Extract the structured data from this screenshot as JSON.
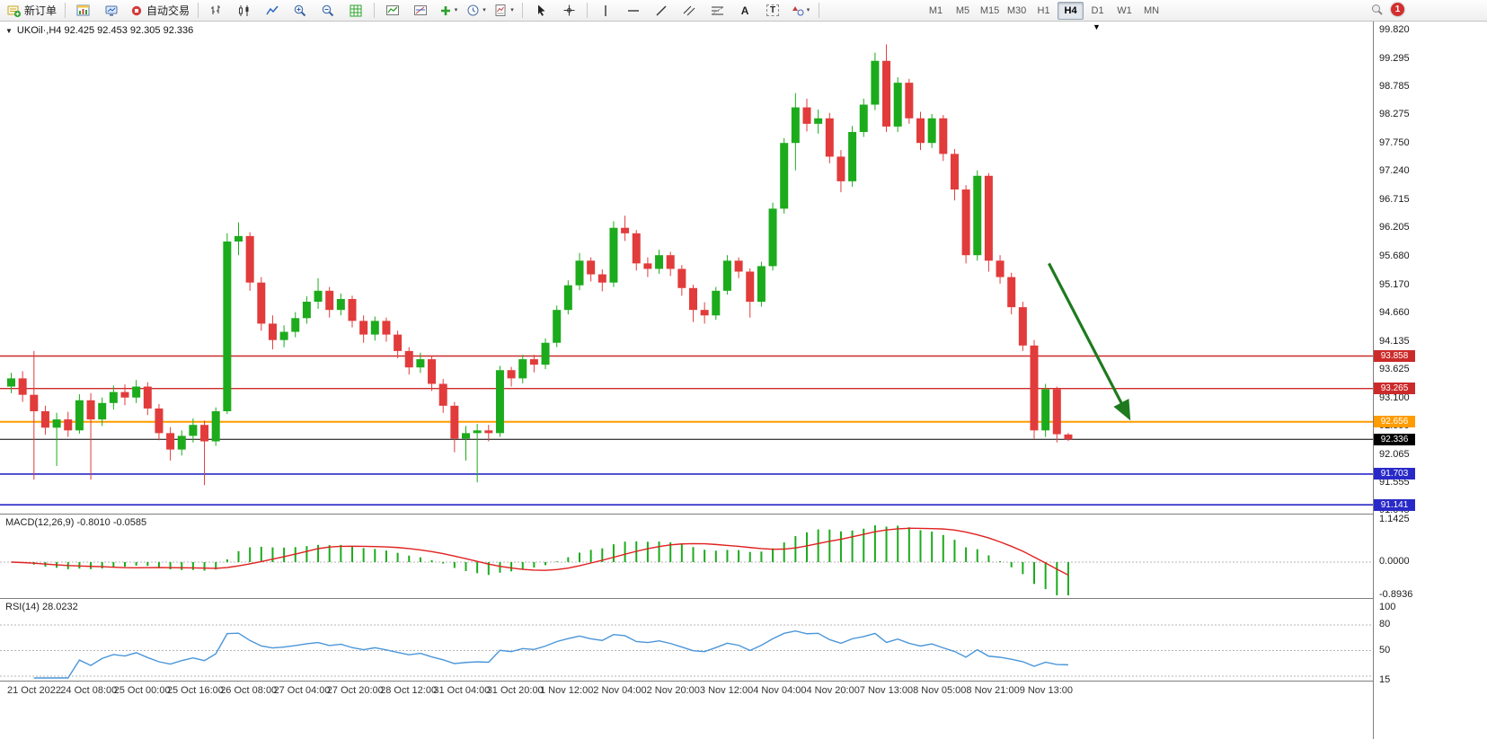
{
  "toolbar": {
    "new_order_label": "新订单",
    "auto_trading_label": "自动交易",
    "timeframes": [
      "M1",
      "M5",
      "M15",
      "M30",
      "H1",
      "H4",
      "D1",
      "W1",
      "MN"
    ],
    "active_timeframe": "H4",
    "notification_badge": "1",
    "icons": [
      "new-order",
      "new-chart",
      "profiles",
      "auto-trading",
      "bar-chart-type",
      "candlestick-type",
      "line-chart-type",
      "zoom-in",
      "zoom-out",
      "grid",
      "indicators-window",
      "objects-list",
      "add-indicator",
      "periods",
      "templates",
      "cursor",
      "crosshair",
      "vertical-line",
      "horizontal-line",
      "trendline",
      "equidistant-channel",
      "fibonacci",
      "text",
      "text-label",
      "arrows-dropdown",
      "search",
      "notifications"
    ]
  },
  "chart": {
    "symbol_label": "UKOil·,H4 92.425 92.453 92.305 92.336",
    "price_axis_labels": [
      "99.820",
      "99.295",
      "98.785",
      "98.275",
      "97.750",
      "97.240",
      "96.715",
      "96.205",
      "95.680",
      "95.170",
      "94.660",
      "94.135",
      "93.625",
      "93.100",
      "92.590",
      "92.065",
      "91.555",
      "91.045"
    ],
    "time_axis_labels": [
      "21 Oct 2022",
      "24 Oct 08:00",
      "25 Oct 00:00",
      "25 Oct 16:00",
      "26 Oct 08:00",
      "27 Oct 04:00",
      "27 Oct 20:00",
      "28 Oct 12:00",
      "31 Oct 04:00",
      "31 Oct 20:00",
      "1 Nov 12:00",
      "2 Nov 04:00",
      "2 Nov 20:00",
      "3 Nov 12:00",
      "4 Nov 04:00",
      "4 Nov 20:00",
      "7 Nov 13:00",
      "8 Nov 05:00",
      "8 Nov 21:00",
      "9 Nov 13:00"
    ],
    "horizontal_lines": [
      {
        "price": 93.858,
        "label": "93.858",
        "color": "#cc2a2a",
        "width": 1.4
      },
      {
        "price": 93.265,
        "label": "93.265",
        "color": "#cc2a2a",
        "width": 1.4
      },
      {
        "price": 92.656,
        "label": "92.656",
        "color": "#ff9c00",
        "width": 2
      },
      {
        "price": 92.336,
        "label": "92.336",
        "color": "#000000",
        "width": 1
      },
      {
        "price": 91.703,
        "label": "91.703",
        "color": "#2929c8",
        "width": 1.6
      },
      {
        "price": 91.141,
        "label": "91.141",
        "color": "#2929c8",
        "width": 1.6
      }
    ],
    "arrow": {
      "from_index": 91.3,
      "from_price": 95.55,
      "to_index": 98.3,
      "to_price": 92.75,
      "color": "#1e7a1e"
    },
    "colors": {
      "bull": "#1cab1c",
      "bear": "#e23b3b"
    }
  },
  "chart_data": {
    "type": "candlestick",
    "symbol": "UKOil",
    "timeframe": "H4",
    "ohlc": [
      [
        93.3,
        93.55,
        93.18,
        93.45
      ],
      [
        93.45,
        93.58,
        93.02,
        93.15
      ],
      [
        93.15,
        93.95,
        91.6,
        92.85
      ],
      [
        92.85,
        92.95,
        92.42,
        92.55
      ],
      [
        92.55,
        92.82,
        91.85,
        92.7
      ],
      [
        92.7,
        92.84,
        92.38,
        92.5
      ],
      [
        92.5,
        93.16,
        92.44,
        93.05
      ],
      [
        93.05,
        93.18,
        91.6,
        92.7
      ],
      [
        92.7,
        93.1,
        92.58,
        93.0
      ],
      [
        93.0,
        93.32,
        92.88,
        93.2
      ],
      [
        93.2,
        93.34,
        92.96,
        93.1
      ],
      [
        93.1,
        93.42,
        93.0,
        93.3
      ],
      [
        93.3,
        93.38,
        92.78,
        92.9
      ],
      [
        92.9,
        92.98,
        92.32,
        92.45
      ],
      [
        92.45,
        92.56,
        91.95,
        92.15
      ],
      [
        92.15,
        92.5,
        92.04,
        92.4
      ],
      [
        92.4,
        92.72,
        92.28,
        92.6
      ],
      [
        92.6,
        92.68,
        91.5,
        92.3
      ],
      [
        92.3,
        92.92,
        92.22,
        92.85
      ],
      [
        92.85,
        96.1,
        92.8,
        95.95
      ],
      [
        95.95,
        96.3,
        95.7,
        96.05
      ],
      [
        96.05,
        96.12,
        95.05,
        95.2
      ],
      [
        95.2,
        95.3,
        94.32,
        94.45
      ],
      [
        94.45,
        94.6,
        93.98,
        94.15
      ],
      [
        94.15,
        94.42,
        94.02,
        94.3
      ],
      [
        94.3,
        94.66,
        94.2,
        94.55
      ],
      [
        94.55,
        94.95,
        94.45,
        94.85
      ],
      [
        94.85,
        95.28,
        94.72,
        95.05
      ],
      [
        95.05,
        95.12,
        94.56,
        94.7
      ],
      [
        94.7,
        95.0,
        94.6,
        94.9
      ],
      [
        94.9,
        94.96,
        94.38,
        94.5
      ],
      [
        94.5,
        94.6,
        94.1,
        94.25
      ],
      [
        94.25,
        94.58,
        94.14,
        94.5
      ],
      [
        94.5,
        94.56,
        94.12,
        94.25
      ],
      [
        94.25,
        94.32,
        93.82,
        93.95
      ],
      [
        93.95,
        94.02,
        93.52,
        93.65
      ],
      [
        93.65,
        93.92,
        93.55,
        93.8
      ],
      [
        93.8,
        93.86,
        93.22,
        93.35
      ],
      [
        93.35,
        93.44,
        92.82,
        92.95
      ],
      [
        92.95,
        93.02,
        92.1,
        92.35
      ],
      [
        92.35,
        92.58,
        91.95,
        92.45
      ],
      [
        92.45,
        92.62,
        91.55,
        92.5
      ],
      [
        92.5,
        92.6,
        92.3,
        92.45
      ],
      [
        92.45,
        93.68,
        92.38,
        93.6
      ],
      [
        93.6,
        93.66,
        93.3,
        93.45
      ],
      [
        93.45,
        93.88,
        93.36,
        93.8
      ],
      [
        93.8,
        93.88,
        93.56,
        93.7
      ],
      [
        93.7,
        94.18,
        93.62,
        94.1
      ],
      [
        94.1,
        94.78,
        94.02,
        94.7
      ],
      [
        94.7,
        95.24,
        94.62,
        95.15
      ],
      [
        95.15,
        95.74,
        95.06,
        95.6
      ],
      [
        95.6,
        95.66,
        95.22,
        95.35
      ],
      [
        95.35,
        95.44,
        95.04,
        95.2
      ],
      [
        95.2,
        96.32,
        95.12,
        96.2
      ],
      [
        96.2,
        96.42,
        95.96,
        96.1
      ],
      [
        96.1,
        96.16,
        95.42,
        95.55
      ],
      [
        95.55,
        95.66,
        95.3,
        95.45
      ],
      [
        95.45,
        95.8,
        95.36,
        95.7
      ],
      [
        95.7,
        95.76,
        95.32,
        95.45
      ],
      [
        95.45,
        95.52,
        94.96,
        95.1
      ],
      [
        95.1,
        95.16,
        94.48,
        94.7
      ],
      [
        94.7,
        94.84,
        94.45,
        94.6
      ],
      [
        94.6,
        95.12,
        94.52,
        95.05
      ],
      [
        95.05,
        95.7,
        94.98,
        95.6
      ],
      [
        95.6,
        95.66,
        95.28,
        95.4
      ],
      [
        95.4,
        95.46,
        94.56,
        94.85
      ],
      [
        94.85,
        95.58,
        94.76,
        95.5
      ],
      [
        95.5,
        96.66,
        95.42,
        96.55
      ],
      [
        96.55,
        97.84,
        96.46,
        97.75
      ],
      [
        97.75,
        98.66,
        97.25,
        98.4
      ],
      [
        98.4,
        98.56,
        97.96,
        98.1
      ],
      [
        98.1,
        98.36,
        97.92,
        98.2
      ],
      [
        98.2,
        98.3,
        97.38,
        97.5
      ],
      [
        97.5,
        97.62,
        96.85,
        97.05
      ],
      [
        97.05,
        98.06,
        96.95,
        97.95
      ],
      [
        97.95,
        98.56,
        97.86,
        98.45
      ],
      [
        98.45,
        99.4,
        98.35,
        99.25
      ],
      [
        99.25,
        99.55,
        97.95,
        98.05
      ],
      [
        98.05,
        98.95,
        97.95,
        98.85
      ],
      [
        98.85,
        98.92,
        98.1,
        98.2
      ],
      [
        98.2,
        98.32,
        97.62,
        97.75
      ],
      [
        97.75,
        98.28,
        97.66,
        98.2
      ],
      [
        98.2,
        98.26,
        97.42,
        97.55
      ],
      [
        97.55,
        97.64,
        96.7,
        96.9
      ],
      [
        96.9,
        96.98,
        95.55,
        95.7
      ],
      [
        95.7,
        97.25,
        95.6,
        97.15
      ],
      [
        97.15,
        97.2,
        95.4,
        95.6
      ],
      [
        95.6,
        95.7,
        95.18,
        95.3
      ],
      [
        95.3,
        95.38,
        94.62,
        94.75
      ],
      [
        94.75,
        94.85,
        93.95,
        94.05
      ],
      [
        94.05,
        94.15,
        92.35,
        92.5
      ],
      [
        92.5,
        93.35,
        92.38,
        93.25
      ],
      [
        93.25,
        93.3,
        92.28,
        92.43
      ],
      [
        92.425,
        92.453,
        92.305,
        92.336
      ]
    ]
  },
  "macd": {
    "label": "MACD(12,26,9) -0.8010 -0.0585",
    "main_value": "-0.8010",
    "signal_value": "-0.0585",
    "axis_labels": [
      "1.1425",
      "0.0000",
      "-0.8936"
    ],
    "fast": 12,
    "slow": 26,
    "signal": 9,
    "histogram_color": "#1cab1c",
    "signal_color": "#e02020"
  },
  "rsi": {
    "label": "RSI(14) 28.0232",
    "value": "28.0232",
    "period": 14,
    "axis_labels": [
      "100",
      "80",
      "50",
      "15"
    ],
    "levels": [
      80,
      50,
      20
    ],
    "line_color": "#4a96d9"
  }
}
